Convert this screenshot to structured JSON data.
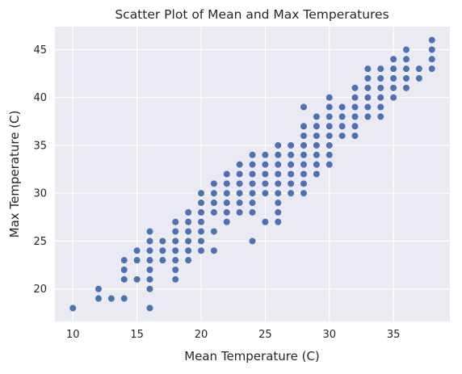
{
  "chart_data": {
    "type": "scatter",
    "title": "Scatter Plot of Mean and Max Temperatures",
    "xlabel": "Mean Temperature (C)",
    "ylabel": "Max Temperature (C)",
    "xlim": [
      8.6,
      39.4
    ],
    "ylim": [
      16.6,
      47.4
    ],
    "xticks": [
      10,
      15,
      20,
      25,
      30,
      35
    ],
    "yticks": [
      20,
      25,
      30,
      35,
      40,
      45
    ],
    "grid": true,
    "background": "#eaeaf2",
    "marker_color": "#4c72b0",
    "points": [
      [
        10,
        18
      ],
      [
        12,
        20
      ],
      [
        12,
        19
      ],
      [
        13,
        19
      ],
      [
        14,
        23
      ],
      [
        14,
        22
      ],
      [
        14,
        21
      ],
      [
        14,
        19
      ],
      [
        15,
        24
      ],
      [
        15,
        23
      ],
      [
        15,
        21
      ],
      [
        16,
        26
      ],
      [
        16,
        25
      ],
      [
        16,
        24
      ],
      [
        16,
        23
      ],
      [
        16,
        22
      ],
      [
        16,
        21
      ],
      [
        16,
        20
      ],
      [
        16,
        18
      ],
      [
        17,
        25
      ],
      [
        17,
        24
      ],
      [
        17,
        23
      ],
      [
        18,
        27
      ],
      [
        18,
        26
      ],
      [
        18,
        25
      ],
      [
        18,
        24
      ],
      [
        18,
        23
      ],
      [
        18,
        22
      ],
      [
        18,
        21
      ],
      [
        19,
        28
      ],
      [
        19,
        27
      ],
      [
        19,
        26
      ],
      [
        19,
        25
      ],
      [
        19,
        24
      ],
      [
        19,
        23
      ],
      [
        20,
        30
      ],
      [
        20,
        29
      ],
      [
        20,
        28
      ],
      [
        20,
        27
      ],
      [
        20,
        26
      ],
      [
        20,
        25
      ],
      [
        20,
        24
      ],
      [
        21,
        31
      ],
      [
        21,
        30
      ],
      [
        21,
        29
      ],
      [
        21,
        28
      ],
      [
        21,
        26
      ],
      [
        21,
        24
      ],
      [
        22,
        32
      ],
      [
        22,
        31
      ],
      [
        22,
        30
      ],
      [
        22,
        29
      ],
      [
        22,
        28
      ],
      [
        22,
        27
      ],
      [
        23,
        33
      ],
      [
        23,
        32
      ],
      [
        23,
        31
      ],
      [
        23,
        30
      ],
      [
        23,
        29
      ],
      [
        23,
        28
      ],
      [
        24,
        34
      ],
      [
        24,
        33
      ],
      [
        24,
        32
      ],
      [
        24,
        31
      ],
      [
        24,
        30
      ],
      [
        24,
        29
      ],
      [
        24,
        28
      ],
      [
        24,
        25
      ],
      [
        25,
        34
      ],
      [
        25,
        33
      ],
      [
        25,
        32
      ],
      [
        25,
        31
      ],
      [
        25,
        30
      ],
      [
        25,
        27
      ],
      [
        26,
        35
      ],
      [
        26,
        34
      ],
      [
        26,
        33
      ],
      [
        26,
        32
      ],
      [
        26,
        31
      ],
      [
        26,
        30
      ],
      [
        26,
        29
      ],
      [
        26,
        28
      ],
      [
        26,
        27
      ],
      [
        27,
        35
      ],
      [
        27,
        34
      ],
      [
        27,
        33
      ],
      [
        27,
        32
      ],
      [
        27,
        31
      ],
      [
        27,
        30
      ],
      [
        28,
        39
      ],
      [
        28,
        37
      ],
      [
        28,
        36
      ],
      [
        28,
        35
      ],
      [
        28,
        34
      ],
      [
        28,
        33
      ],
      [
        28,
        32
      ],
      [
        28,
        31
      ],
      [
        28,
        30
      ],
      [
        29,
        38
      ],
      [
        29,
        37
      ],
      [
        29,
        36
      ],
      [
        29,
        35
      ],
      [
        29,
        34
      ],
      [
        29,
        33
      ],
      [
        29,
        32
      ],
      [
        30,
        40
      ],
      [
        30,
        39
      ],
      [
        30,
        38
      ],
      [
        30,
        37
      ],
      [
        30,
        36
      ],
      [
        30,
        35
      ],
      [
        30,
        34
      ],
      [
        30,
        33
      ],
      [
        31,
        39
      ],
      [
        31,
        38
      ],
      [
        31,
        37
      ],
      [
        31,
        36
      ],
      [
        32,
        41
      ],
      [
        32,
        40
      ],
      [
        32,
        39
      ],
      [
        32,
        38
      ],
      [
        32,
        37
      ],
      [
        32,
        36
      ],
      [
        33,
        43
      ],
      [
        33,
        42
      ],
      [
        33,
        41
      ],
      [
        33,
        40
      ],
      [
        33,
        39
      ],
      [
        33,
        38
      ],
      [
        34,
        43
      ],
      [
        34,
        42
      ],
      [
        34,
        41
      ],
      [
        34,
        40
      ],
      [
        34,
        39
      ],
      [
        34,
        38
      ],
      [
        35,
        44
      ],
      [
        35,
        43
      ],
      [
        35,
        42
      ],
      [
        35,
        41
      ],
      [
        35,
        40
      ],
      [
        36,
        45
      ],
      [
        36,
        44
      ],
      [
        36,
        43
      ],
      [
        36,
        42
      ],
      [
        36,
        41
      ],
      [
        37,
        43
      ],
      [
        37,
        42
      ],
      [
        38,
        46
      ],
      [
        38,
        45
      ],
      [
        38,
        44
      ],
      [
        38,
        43
      ]
    ]
  }
}
